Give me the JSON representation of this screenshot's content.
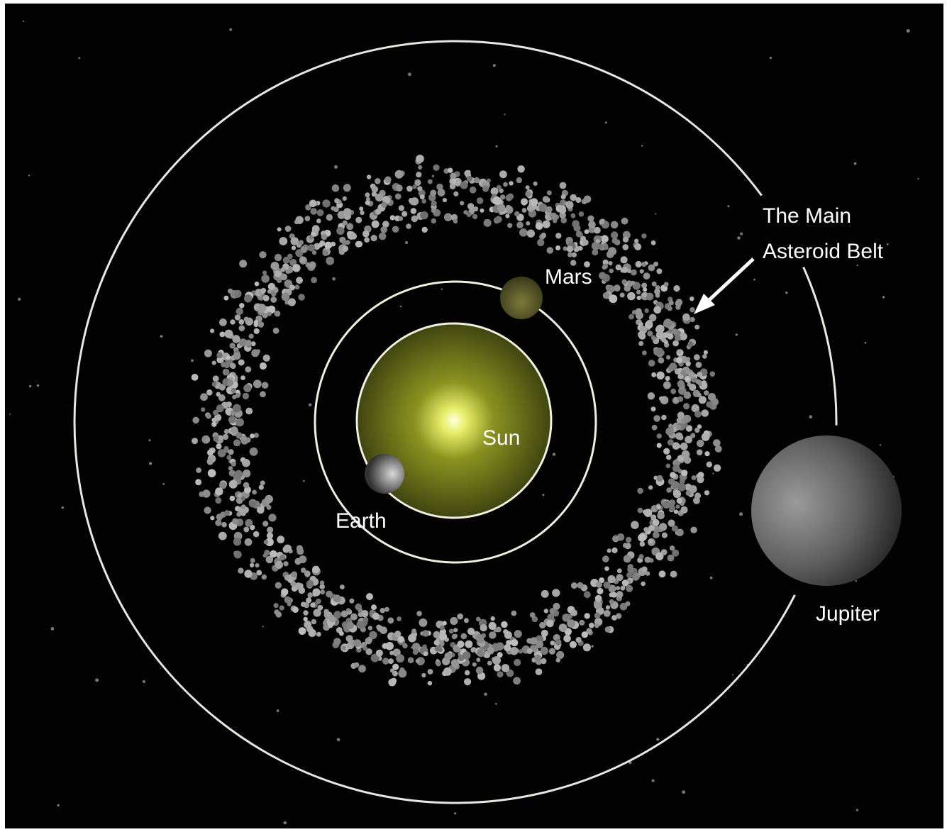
{
  "bodies": [
    {
      "label": "Sun"
    },
    {
      "label": "Earth"
    },
    {
      "label": "Mars"
    },
    {
      "label": "Jupiter"
    }
  ],
  "annotation": {
    "lines": [
      "The Main",
      "Asteroid Belt"
    ]
  }
}
